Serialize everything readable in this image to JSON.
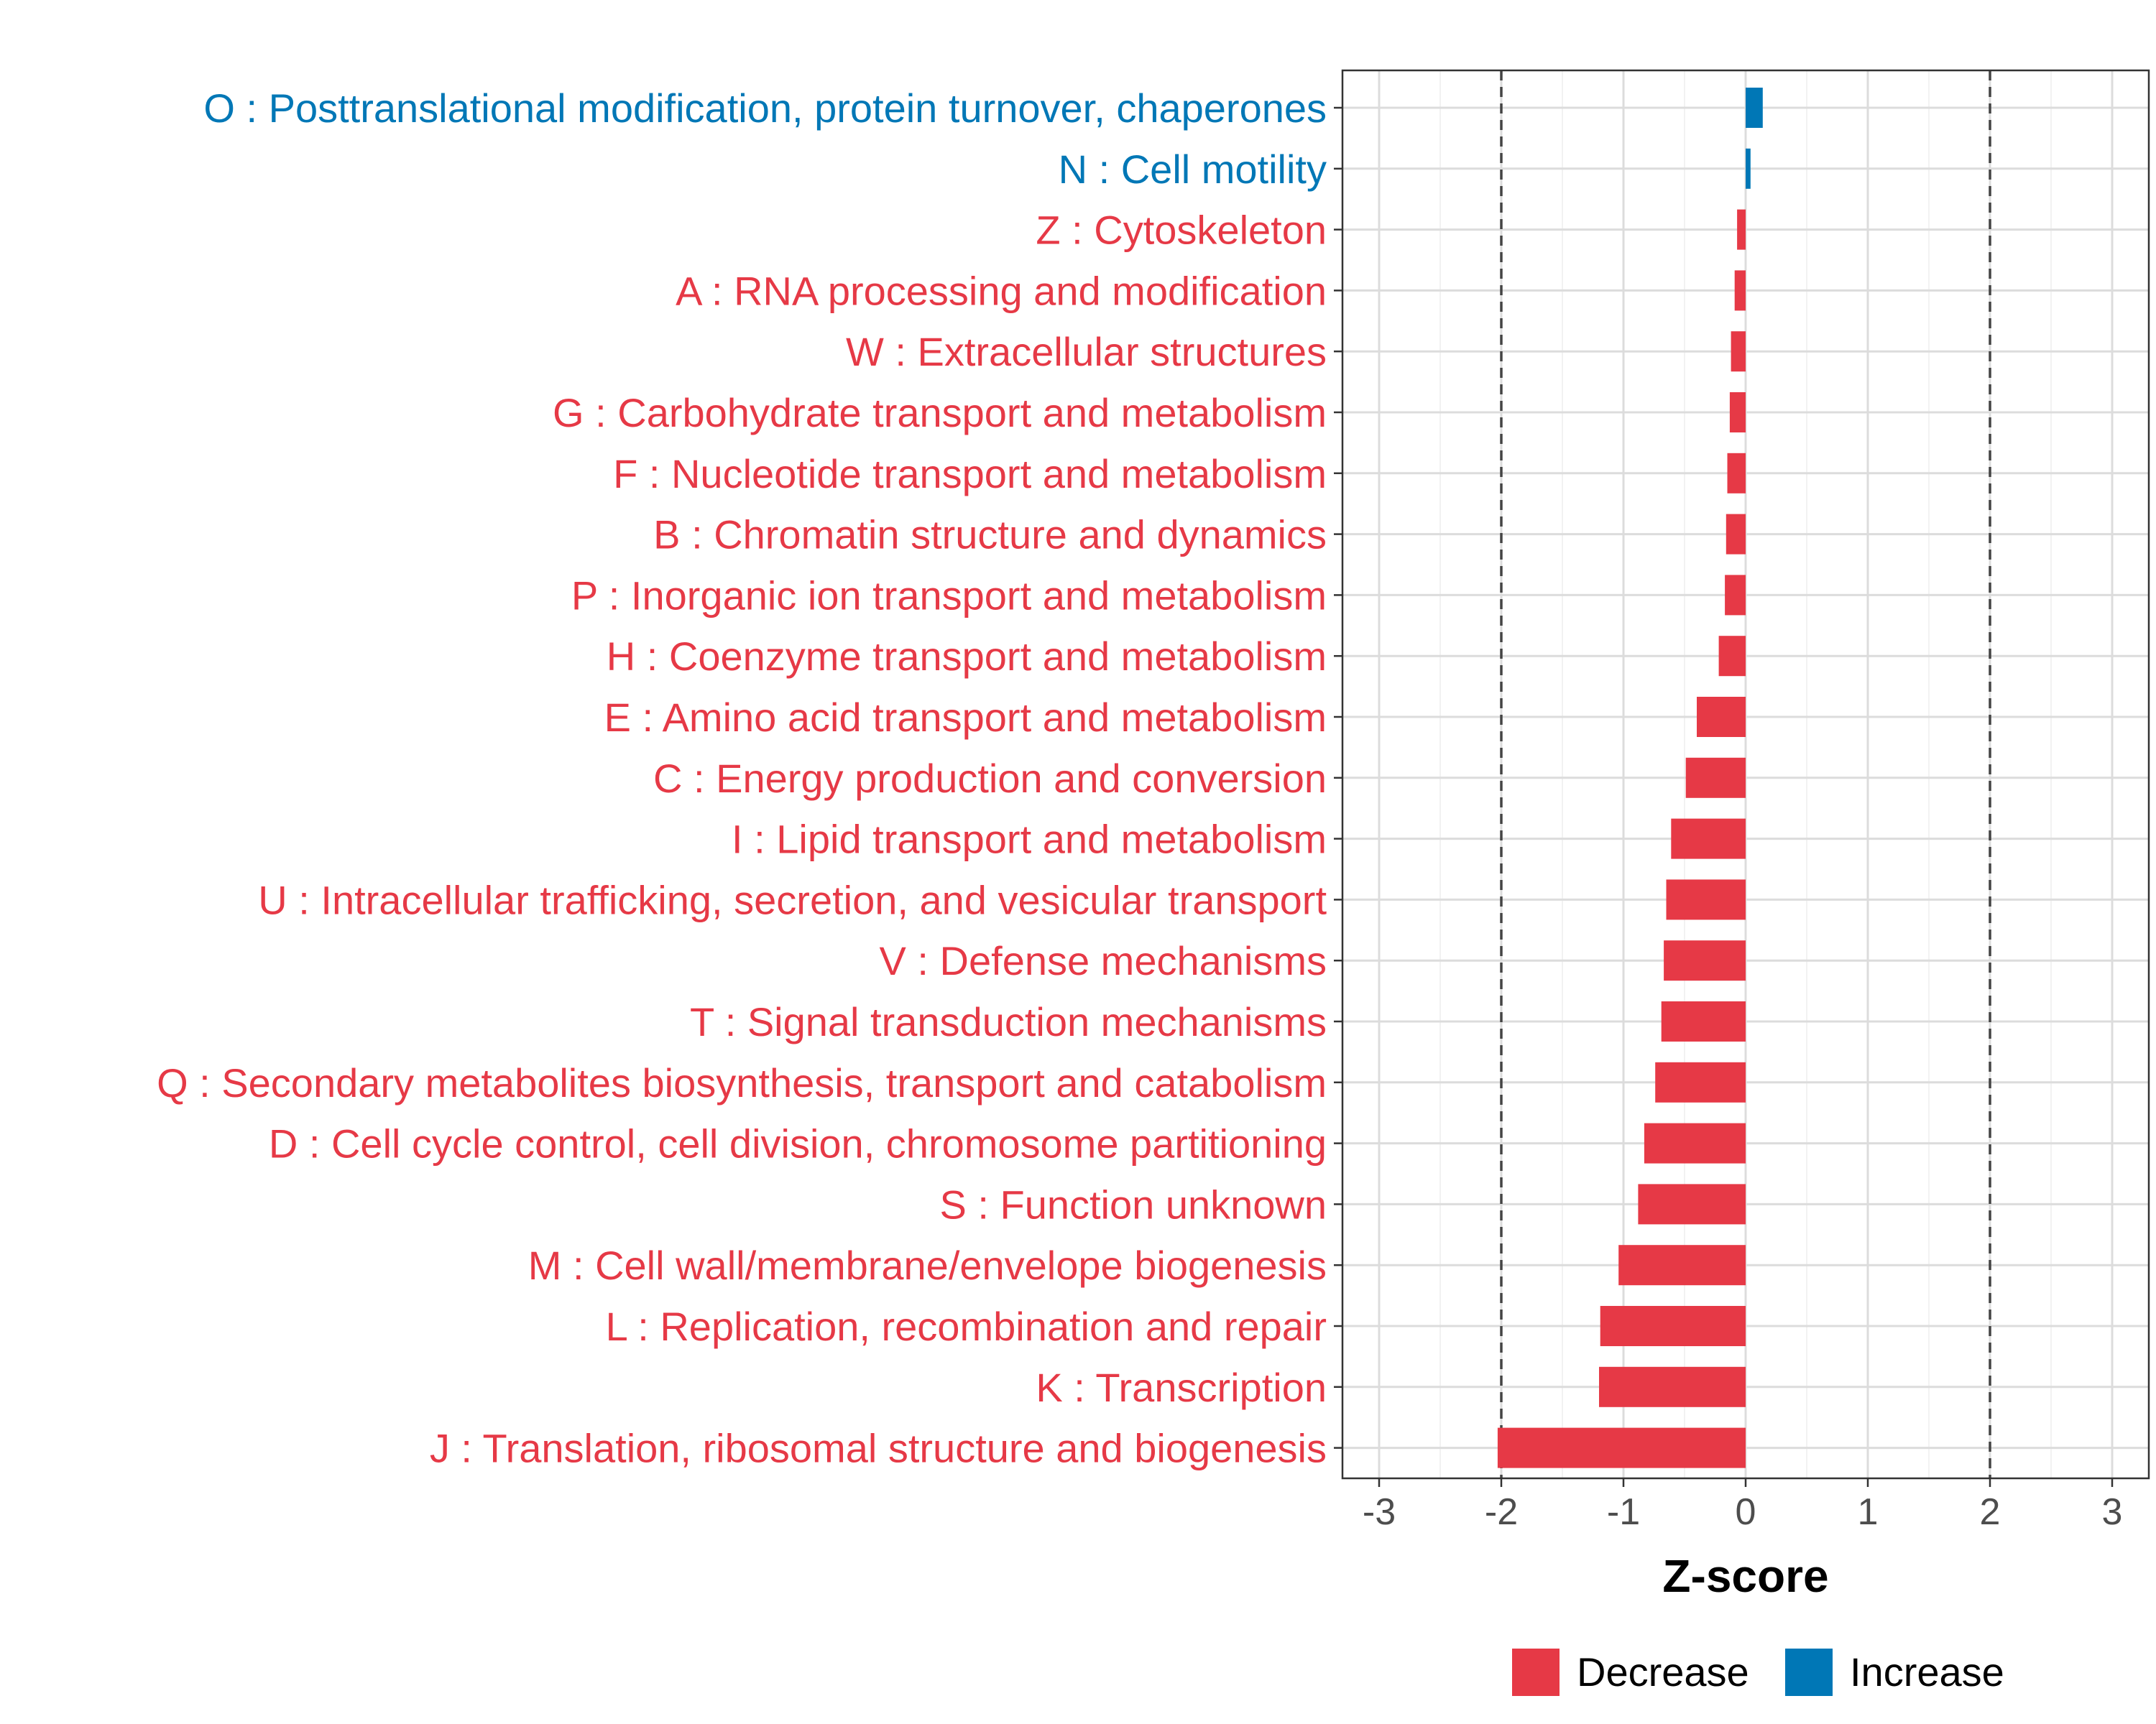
{
  "chart_data": {
    "type": "bar",
    "orientation": "horizontal",
    "title": "",
    "xlabel": "Z-score",
    "ylabel": "",
    "xlim": [
      -3.3,
      3.3
    ],
    "xticks": [
      -3,
      -2,
      -1,
      0,
      1,
      2,
      3
    ],
    "reference_lines": [
      -2,
      2
    ],
    "grid": true,
    "legend_position": "bottom",
    "legend": [
      {
        "name": "Decrease",
        "color": "#E63946"
      },
      {
        "name": "Increase",
        "color": "#0077B6"
      }
    ],
    "categories": [
      {
        "label": "O : Posttranslational modification, protein turnover, chaperones",
        "value": 0.14,
        "direction": "Increase"
      },
      {
        "label": "N : Cell motility",
        "value": 0.04,
        "direction": "Increase"
      },
      {
        "label": "Z : Cytoskeleton",
        "value": -0.07,
        "direction": "Decrease"
      },
      {
        "label": "A : RNA processing and modification",
        "value": -0.09,
        "direction": "Decrease"
      },
      {
        "label": "W : Extracellular structures",
        "value": -0.12,
        "direction": "Decrease"
      },
      {
        "label": "G : Carbohydrate transport and metabolism",
        "value": -0.13,
        "direction": "Decrease"
      },
      {
        "label": "F : Nucleotide transport and metabolism",
        "value": -0.15,
        "direction": "Decrease"
      },
      {
        "label": "B : Chromatin structure and dynamics",
        "value": -0.16,
        "direction": "Decrease"
      },
      {
        "label": "P : Inorganic ion transport and metabolism",
        "value": -0.17,
        "direction": "Decrease"
      },
      {
        "label": "H : Coenzyme transport and metabolism",
        "value": -0.22,
        "direction": "Decrease"
      },
      {
        "label": "E : Amino acid transport and metabolism",
        "value": -0.4,
        "direction": "Decrease"
      },
      {
        "label": "C : Energy production and conversion",
        "value": -0.49,
        "direction": "Decrease"
      },
      {
        "label": "I : Lipid transport and metabolism",
        "value": -0.61,
        "direction": "Decrease"
      },
      {
        "label": "U : Intracellular trafficking, secretion, and vesicular transport",
        "value": -0.65,
        "direction": "Decrease"
      },
      {
        "label": "V : Defense mechanisms",
        "value": -0.67,
        "direction": "Decrease"
      },
      {
        "label": "T : Signal transduction mechanisms",
        "value": -0.69,
        "direction": "Decrease"
      },
      {
        "label": "Q : Secondary metabolites biosynthesis, transport and catabolism",
        "value": -0.74,
        "direction": "Decrease"
      },
      {
        "label": "D : Cell cycle control, cell division, chromosome partitioning",
        "value": -0.83,
        "direction": "Decrease"
      },
      {
        "label": "S : Function unknown",
        "value": -0.88,
        "direction": "Decrease"
      },
      {
        "label": "M : Cell wall/membrane/envelope biogenesis",
        "value": -1.04,
        "direction": "Decrease"
      },
      {
        "label": "L : Replication, recombination and repair",
        "value": -1.19,
        "direction": "Decrease"
      },
      {
        "label": "K : Transcription",
        "value": -1.2,
        "direction": "Decrease"
      },
      {
        "label": "J : Translation, ribosomal structure and biogenesis",
        "value": -2.03,
        "direction": "Decrease"
      }
    ]
  }
}
